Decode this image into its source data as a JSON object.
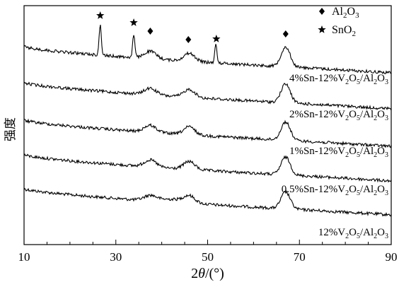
{
  "chart_data": {
    "type": "line",
    "xlabel": "2θ/(°)",
    "xlabel_parts": {
      "base": "2",
      "theta": "θ",
      "rest": "/(°)"
    },
    "ylabel": "强度",
    "xlim": [
      10,
      90
    ],
    "xticks": [
      10,
      30,
      50,
      70,
      90
    ],
    "y_axis_ticks": false,
    "grid": false,
    "legend_placement": "top-right",
    "legend": [
      {
        "marker": "diamond",
        "label": "Al2O3",
        "text": "Al",
        "sub1": "2",
        "mid": "O",
        "sub2": "3"
      },
      {
        "marker": "star",
        "label": "SnO2",
        "text": "SnO",
        "sub1": "2"
      }
    ],
    "series": [
      {
        "name": "12%V2O5/Al2O3",
        "label_parts": [
          "12%V",
          "2",
          "O",
          "5",
          "/Al",
          "2",
          "O",
          "3"
        ],
        "baseline": 0.0,
        "peaks": [
          {
            "x": 37.5,
            "h": 0.1,
            "w": 1.3
          },
          {
            "x": 42.5,
            "h": 0.06,
            "w": 3.0
          },
          {
            "x": 46.0,
            "h": 0.13,
            "w": 1.2
          },
          {
            "x": 67.0,
            "h": 0.34,
            "w": 1.0
          }
        ]
      },
      {
        "name": "0.5%Sn-12%V2O5/Al2O3",
        "label_parts": [
          "0.5%Sn-12%V",
          "2",
          "O",
          "5",
          "/Al",
          "2",
          "O",
          "3"
        ],
        "baseline": 1.0,
        "peaks": [
          {
            "x": 37.5,
            "h": 0.14,
            "w": 1.3
          },
          {
            "x": 46.0,
            "h": 0.16,
            "w": 1.2
          },
          {
            "x": 67.0,
            "h": 0.36,
            "w": 1.0
          }
        ]
      },
      {
        "name": "1%Sn-12%V2O5/Al2O3",
        "label_parts": [
          "1%Sn-12%V",
          "2",
          "O",
          "5",
          "/Al",
          "2",
          "O",
          "3"
        ],
        "baseline": 2.0,
        "peaks": [
          {
            "x": 37.5,
            "h": 0.14,
            "w": 1.3
          },
          {
            "x": 46.0,
            "h": 0.16,
            "w": 1.2
          },
          {
            "x": 67.0,
            "h": 0.37,
            "w": 1.0
          }
        ]
      },
      {
        "name": "2%Sn-12%V2O5/Al2O3",
        "label_parts": [
          "2%Sn-12%V",
          "2",
          "O",
          "5",
          "/Al",
          "2",
          "O",
          "3"
        ],
        "baseline": 3.0,
        "peaks": [
          {
            "x": 37.5,
            "h": 0.13,
            "w": 1.3
          },
          {
            "x": 46.0,
            "h": 0.16,
            "w": 1.2
          },
          {
            "x": 67.0,
            "h": 0.38,
            "w": 1.0
          }
        ]
      },
      {
        "name": "4%Sn-12%V2O5/Al2O3",
        "label_parts": [
          "4%Sn-12%V",
          "2",
          "O",
          "5",
          "/Al",
          "2",
          "O",
          "3"
        ],
        "baseline": 4.0,
        "peaks": [
          {
            "x": 26.6,
            "h": 0.6,
            "w": 0.25
          },
          {
            "x": 33.9,
            "h": 0.45,
            "w": 0.25
          },
          {
            "x": 37.5,
            "h": 0.15,
            "w": 1.3
          },
          {
            "x": 46.0,
            "h": 0.16,
            "w": 1.2
          },
          {
            "x": 51.8,
            "h": 0.36,
            "w": 0.25
          },
          {
            "x": 67.0,
            "h": 0.4,
            "w": 1.0
          }
        ]
      }
    ],
    "peak_markers": [
      {
        "type": "star",
        "x": 26.6
      },
      {
        "type": "star",
        "x": 33.9
      },
      {
        "type": "diamond",
        "x": 37.5
      },
      {
        "type": "diamond",
        "x": 45.8
      },
      {
        "type": "star",
        "x": 51.9
      },
      {
        "type": "diamond",
        "x": 67.0
      }
    ]
  }
}
